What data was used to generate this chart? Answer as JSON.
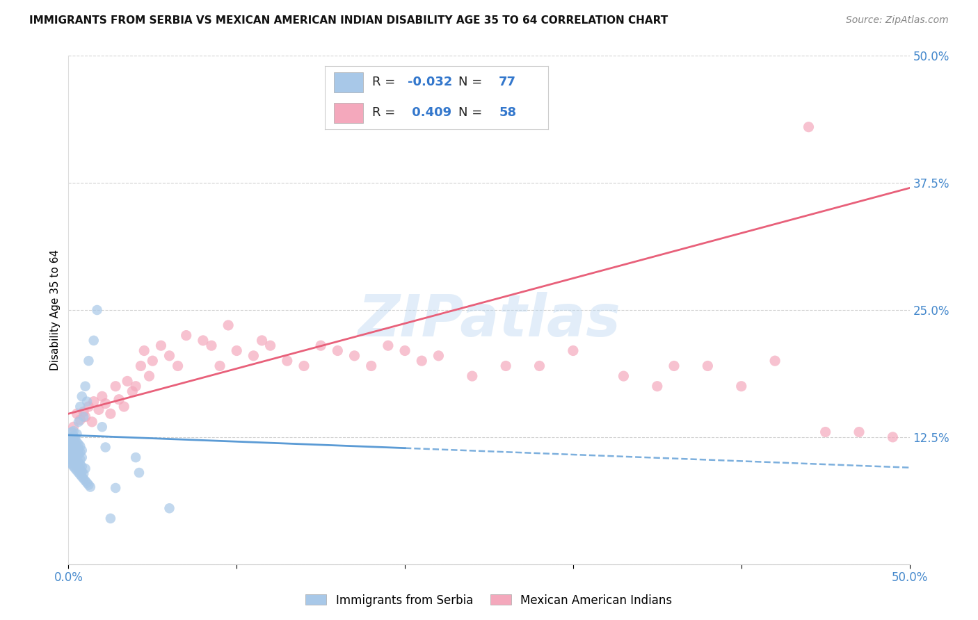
{
  "title": "IMMIGRANTS FROM SERBIA VS MEXICAN AMERICAN INDIAN DISABILITY AGE 35 TO 64 CORRELATION CHART",
  "source": "Source: ZipAtlas.com",
  "ylabel": "Disability Age 35 to 64",
  "xlim": [
    0.0,
    0.5
  ],
  "ylim": [
    0.0,
    0.5
  ],
  "xticks": [
    0.0,
    0.1,
    0.2,
    0.3,
    0.4,
    0.5
  ],
  "yticks": [
    0.0,
    0.125,
    0.25,
    0.375,
    0.5
  ],
  "xticklabels": [
    "0.0%",
    "",
    "",
    "",
    "",
    "50.0%"
  ],
  "yticklabels": [
    "",
    "12.5%",
    "25.0%",
    "37.5%",
    "50.0%"
  ],
  "serbia_R": -0.032,
  "serbia_N": 77,
  "mexican_R": 0.409,
  "mexican_N": 58,
  "serbia_color": "#a8c8e8",
  "mexican_color": "#f4a8bc",
  "serbia_line_color": "#5b9bd5",
  "mexican_line_color": "#e8607a",
  "watermark": "ZIPatlas",
  "serbia_line": [
    [
      0.0,
      0.127
    ],
    [
      0.5,
      0.095
    ]
  ],
  "mexican_line": [
    [
      0.0,
      0.148
    ],
    [
      0.5,
      0.37
    ]
  ],
  "serbia_scatter_x": [
    0.001,
    0.001,
    0.001,
    0.001,
    0.001,
    0.001,
    0.002,
    0.002,
    0.002,
    0.002,
    0.002,
    0.002,
    0.002,
    0.002,
    0.003,
    0.003,
    0.003,
    0.003,
    0.003,
    0.003,
    0.003,
    0.003,
    0.004,
    0.004,
    0.004,
    0.004,
    0.004,
    0.004,
    0.004,
    0.005,
    0.005,
    0.005,
    0.005,
    0.005,
    0.005,
    0.005,
    0.005,
    0.006,
    0.006,
    0.006,
    0.006,
    0.006,
    0.006,
    0.006,
    0.007,
    0.007,
    0.007,
    0.007,
    0.007,
    0.007,
    0.007,
    0.008,
    0.008,
    0.008,
    0.008,
    0.008,
    0.008,
    0.009,
    0.009,
    0.009,
    0.01,
    0.01,
    0.01,
    0.011,
    0.011,
    0.012,
    0.012,
    0.013,
    0.015,
    0.017,
    0.02,
    0.022,
    0.025,
    0.028,
    0.04,
    0.042,
    0.06
  ],
  "serbia_scatter_y": [
    0.1,
    0.103,
    0.108,
    0.112,
    0.115,
    0.12,
    0.098,
    0.105,
    0.11,
    0.113,
    0.117,
    0.122,
    0.125,
    0.13,
    0.096,
    0.101,
    0.107,
    0.111,
    0.116,
    0.121,
    0.126,
    0.131,
    0.094,
    0.099,
    0.104,
    0.109,
    0.114,
    0.119,
    0.124,
    0.092,
    0.097,
    0.102,
    0.106,
    0.111,
    0.116,
    0.12,
    0.128,
    0.09,
    0.095,
    0.1,
    0.108,
    0.113,
    0.118,
    0.14,
    0.088,
    0.093,
    0.098,
    0.103,
    0.11,
    0.116,
    0.155,
    0.086,
    0.091,
    0.096,
    0.105,
    0.112,
    0.165,
    0.084,
    0.089,
    0.145,
    0.082,
    0.094,
    0.175,
    0.08,
    0.16,
    0.078,
    0.2,
    0.076,
    0.22,
    0.25,
    0.135,
    0.115,
    0.045,
    0.075,
    0.105,
    0.09,
    0.055
  ],
  "mexican_scatter_x": [
    0.003,
    0.005,
    0.007,
    0.009,
    0.01,
    0.012,
    0.014,
    0.015,
    0.018,
    0.02,
    0.022,
    0.025,
    0.028,
    0.03,
    0.033,
    0.035,
    0.038,
    0.04,
    0.043,
    0.045,
    0.048,
    0.05,
    0.055,
    0.06,
    0.065,
    0.07,
    0.08,
    0.085,
    0.09,
    0.095,
    0.1,
    0.11,
    0.115,
    0.12,
    0.13,
    0.14,
    0.15,
    0.16,
    0.17,
    0.18,
    0.19,
    0.2,
    0.21,
    0.22,
    0.24,
    0.26,
    0.28,
    0.3,
    0.33,
    0.35,
    0.36,
    0.38,
    0.4,
    0.42,
    0.44,
    0.45,
    0.47,
    0.49
  ],
  "mexican_scatter_y": [
    0.135,
    0.148,
    0.142,
    0.15,
    0.145,
    0.155,
    0.14,
    0.16,
    0.152,
    0.165,
    0.158,
    0.148,
    0.175,
    0.162,
    0.155,
    0.18,
    0.17,
    0.175,
    0.195,
    0.21,
    0.185,
    0.2,
    0.215,
    0.205,
    0.195,
    0.225,
    0.22,
    0.215,
    0.195,
    0.235,
    0.21,
    0.205,
    0.22,
    0.215,
    0.2,
    0.195,
    0.215,
    0.21,
    0.205,
    0.195,
    0.215,
    0.21,
    0.2,
    0.205,
    0.185,
    0.195,
    0.195,
    0.21,
    0.185,
    0.175,
    0.195,
    0.195,
    0.175,
    0.2,
    0.43,
    0.13,
    0.13,
    0.125
  ]
}
